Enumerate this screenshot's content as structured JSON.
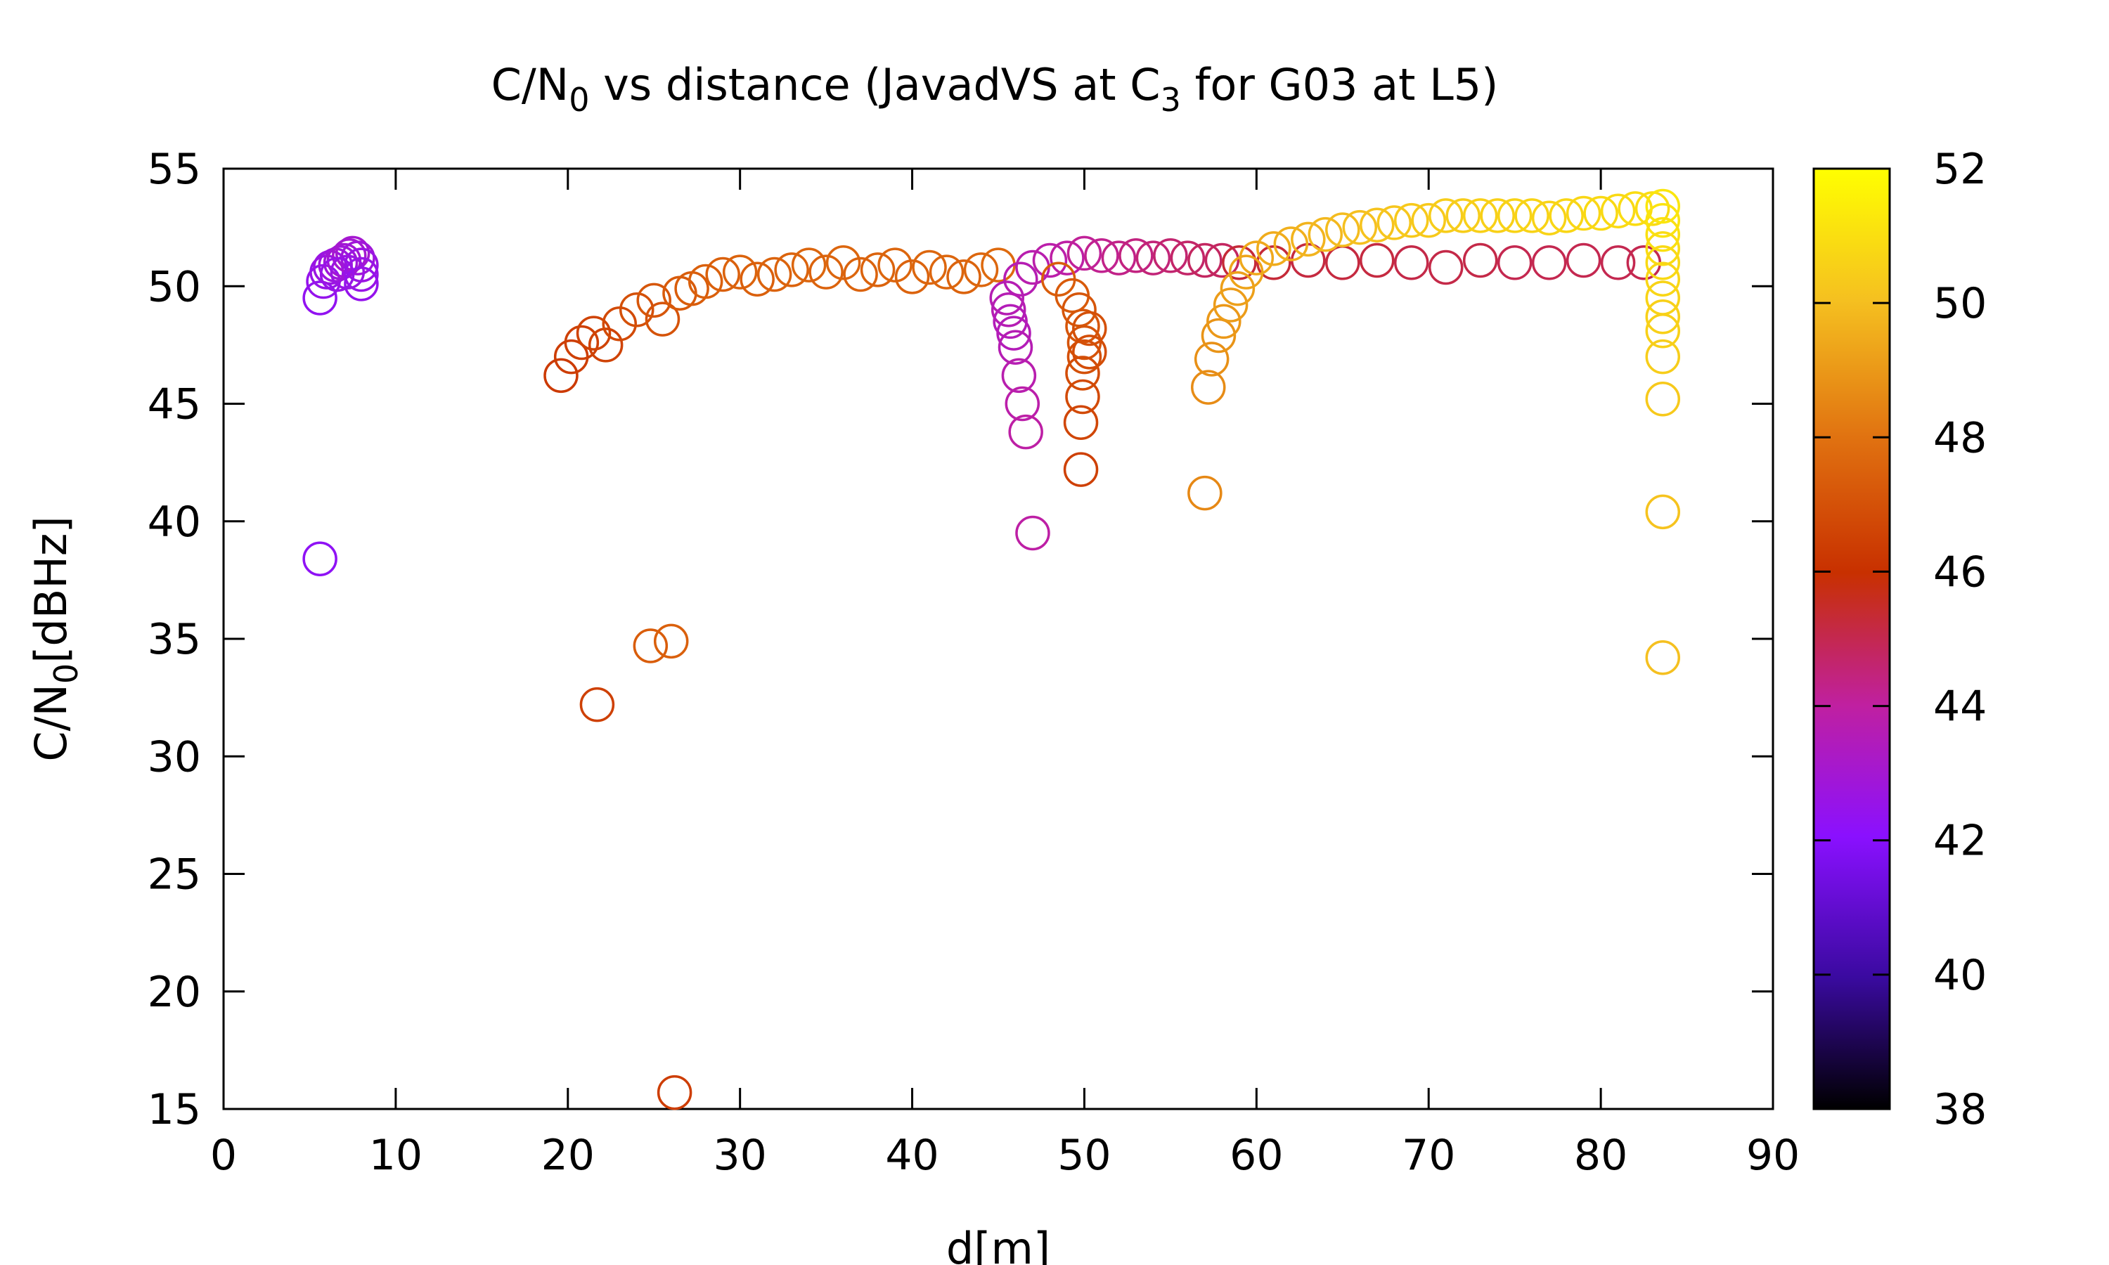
{
  "chart_data": {
    "type": "scatter",
    "title": {
      "pre": "C/N",
      "sub1": "0",
      "mid": " vs distance (JavadVS at C",
      "sub2": "3",
      "post": " for G03 at L5)"
    },
    "xlabel": "d[m]",
    "ylabel": {
      "pre": "C/N",
      "sub": "0",
      "post": "[dBHz]"
    },
    "xlim": [
      0,
      90
    ],
    "ylim": [
      15,
      55
    ],
    "xticks": [
      "0",
      "10",
      "20",
      "30",
      "40",
      "50",
      "60",
      "70",
      "80",
      "90"
    ],
    "yticks": [
      "15",
      "20",
      "25",
      "30",
      "35",
      "40",
      "45",
      "50",
      "55"
    ],
    "colorbar": {
      "range": [
        38,
        52
      ],
      "ticks": [
        "38",
        "40",
        "42",
        "44",
        "46",
        "48",
        "50",
        "52"
      ],
      "palette": "black-purple-red-orange-yellow",
      "stops": [
        "#000000",
        "#3a0aa0",
        "#8a10ff",
        "#c020a0",
        "#c83000",
        "#e07010",
        "#f5c020",
        "#ffff00"
      ]
    },
    "marker": "open-circle",
    "grid": false,
    "series": [
      {
        "points": [
          [
            5.6,
            38.4,
            42.2
          ],
          [
            5.6,
            49.5,
            42.3
          ],
          [
            5.8,
            50.2,
            42.4
          ],
          [
            6.0,
            50.6,
            42.5
          ],
          [
            6.2,
            50.8,
            42.6
          ],
          [
            6.5,
            50.9,
            42.7
          ],
          [
            6.8,
            51.0,
            42.8
          ],
          [
            7.0,
            51.1,
            42.9
          ],
          [
            7.3,
            51.3,
            43.0
          ],
          [
            7.5,
            51.4,
            43.0
          ],
          [
            7.8,
            51.2,
            42.8
          ],
          [
            8.0,
            50.9,
            42.6
          ],
          [
            8.0,
            50.5,
            42.5
          ],
          [
            8.0,
            50.1,
            42.4
          ],
          [
            7.2,
            50.6,
            42.6
          ],
          [
            6.6,
            50.5,
            42.5
          ]
        ]
      },
      {
        "points": [
          [
            19.6,
            46.2,
            46.3
          ],
          [
            20.2,
            47.0,
            46.4
          ],
          [
            20.8,
            47.6,
            46.5
          ],
          [
            21.5,
            48.0,
            46.6
          ],
          [
            21.7,
            32.2,
            46.5
          ],
          [
            22.2,
            47.5,
            46.6
          ],
          [
            23.0,
            48.4,
            46.8
          ],
          [
            24.0,
            49.0,
            47.0
          ],
          [
            24.8,
            34.7,
            47.4
          ],
          [
            25.0,
            49.4,
            47.2
          ],
          [
            25.5,
            48.6,
            47.1
          ],
          [
            26.0,
            34.9,
            47.5
          ],
          [
            26.2,
            15.7,
            46.4
          ],
          [
            26.5,
            49.7,
            47.3
          ],
          [
            27.2,
            49.9,
            47.4
          ],
          [
            28.0,
            50.2,
            47.5
          ],
          [
            29.0,
            50.5,
            47.5
          ],
          [
            30.0,
            50.6,
            47.6
          ],
          [
            31.0,
            50.3,
            47.5
          ],
          [
            32.0,
            50.5,
            47.6
          ],
          [
            33.0,
            50.7,
            47.6
          ],
          [
            34.0,
            50.9,
            47.7
          ],
          [
            35.0,
            50.6,
            47.6
          ],
          [
            36.0,
            51.0,
            47.7
          ],
          [
            37.0,
            50.5,
            47.6
          ],
          [
            38.0,
            50.7,
            47.6
          ],
          [
            39.0,
            50.9,
            47.7
          ],
          [
            40.0,
            50.4,
            47.6
          ],
          [
            41.0,
            50.8,
            47.7
          ],
          [
            42.0,
            50.6,
            47.7
          ],
          [
            43.0,
            50.4,
            47.6
          ],
          [
            44.0,
            50.7,
            47.7
          ],
          [
            45.0,
            50.9,
            47.8
          ]
        ]
      },
      {
        "points": [
          [
            45.5,
            49.5,
            43.6
          ],
          [
            45.6,
            49.0,
            43.6
          ],
          [
            45.7,
            48.5,
            43.5
          ],
          [
            45.9,
            48.0,
            43.5
          ],
          [
            46.0,
            47.4,
            43.6
          ],
          [
            46.2,
            46.2,
            43.7
          ],
          [
            46.4,
            45.0,
            43.8
          ],
          [
            46.6,
            43.8,
            43.9
          ],
          [
            47.0,
            39.5,
            43.9
          ],
          [
            46.3,
            50.3,
            43.6
          ],
          [
            47.0,
            50.8,
            43.7
          ],
          [
            48.0,
            51.1,
            43.8
          ],
          [
            49.0,
            51.2,
            43.9
          ],
          [
            50.0,
            51.4,
            44.1
          ],
          [
            51.0,
            51.3,
            44.2
          ],
          [
            52.0,
            51.2,
            44.3
          ],
          [
            53.0,
            51.3,
            44.4
          ],
          [
            54.0,
            51.2,
            44.5
          ],
          [
            55.0,
            51.3,
            44.6
          ],
          [
            56.0,
            51.2,
            44.7
          ],
          [
            57.0,
            51.1,
            44.8
          ],
          [
            58.0,
            51.1,
            44.8
          ]
        ]
      },
      {
        "points": [
          [
            48.5,
            50.3,
            47.4
          ],
          [
            49.3,
            49.6,
            47.3
          ],
          [
            49.7,
            49.0,
            47.2
          ],
          [
            49.9,
            48.3,
            47.2
          ],
          [
            50.0,
            47.6,
            47.1
          ],
          [
            50.0,
            47.0,
            47.0
          ],
          [
            49.9,
            46.3,
            46.9
          ],
          [
            49.9,
            45.3,
            46.8
          ],
          [
            49.8,
            44.2,
            46.7
          ],
          [
            49.8,
            42.2,
            46.5
          ],
          [
            50.3,
            48.2,
            47.0
          ],
          [
            50.3,
            47.2,
            46.9
          ]
        ]
      },
      {
        "points": [
          [
            59.0,
            51.0,
            45.3
          ],
          [
            61.0,
            51.0,
            45.3
          ],
          [
            63.0,
            51.1,
            45.2
          ],
          [
            65.0,
            51.0,
            45.2
          ],
          [
            67.0,
            51.1,
            45.2
          ],
          [
            69.0,
            51.0,
            45.1
          ],
          [
            71.0,
            50.8,
            45.1
          ],
          [
            73.0,
            51.1,
            45.1
          ],
          [
            75.0,
            51.0,
            45.0
          ],
          [
            77.0,
            51.0,
            45.0
          ],
          [
            79.0,
            51.1,
            45.0
          ],
          [
            81.0,
            51.0,
            45.0
          ],
          [
            82.5,
            51.0,
            45.0
          ]
        ]
      },
      {
        "points": [
          [
            57.0,
            41.2,
            48.6
          ],
          [
            57.2,
            45.7,
            48.7
          ],
          [
            57.4,
            46.9,
            48.8
          ],
          [
            57.8,
            47.9,
            48.9
          ],
          [
            58.1,
            48.5,
            49.0
          ],
          [
            58.5,
            49.2,
            49.1
          ],
          [
            58.9,
            49.9,
            49.2
          ],
          [
            59.4,
            50.6,
            49.3
          ],
          [
            60.0,
            51.2,
            49.4
          ],
          [
            61.0,
            51.6,
            49.5
          ],
          [
            62.0,
            51.8,
            49.6
          ],
          [
            63.0,
            52.0,
            49.7
          ],
          [
            64.0,
            52.2,
            49.8
          ],
          [
            65.0,
            52.4,
            49.9
          ],
          [
            66.0,
            52.5,
            50.0
          ],
          [
            67.0,
            52.6,
            50.1
          ],
          [
            68.0,
            52.7,
            50.2
          ],
          [
            69.0,
            52.8,
            50.3
          ],
          [
            70.0,
            52.8,
            50.3
          ],
          [
            71.0,
            53.0,
            50.4
          ],
          [
            72.0,
            53.0,
            50.4
          ],
          [
            73.0,
            53.0,
            50.5
          ],
          [
            74.0,
            53.0,
            50.5
          ],
          [
            75.0,
            53.0,
            50.6
          ],
          [
            76.0,
            53.0,
            50.6
          ],
          [
            77.0,
            52.9,
            50.6
          ],
          [
            78.0,
            53.0,
            50.7
          ],
          [
            79.0,
            53.1,
            50.7
          ],
          [
            80.0,
            53.1,
            50.8
          ],
          [
            81.0,
            53.2,
            50.8
          ],
          [
            82.0,
            53.3,
            50.9
          ],
          [
            83.0,
            53.3,
            50.9
          ]
        ]
      },
      {
        "points": [
          [
            83.6,
            53.4,
            51.2
          ],
          [
            83.6,
            52.8,
            51.1
          ],
          [
            83.6,
            52.2,
            51.0
          ],
          [
            83.6,
            51.6,
            50.9
          ],
          [
            83.6,
            51.0,
            50.8
          ],
          [
            83.6,
            50.3,
            50.7
          ],
          [
            83.6,
            49.5,
            50.6
          ],
          [
            83.6,
            48.7,
            50.5
          ],
          [
            83.6,
            48.1,
            50.5
          ],
          [
            83.6,
            47.0,
            50.4
          ],
          [
            83.6,
            45.2,
            50.3
          ],
          [
            83.6,
            40.4,
            50.1
          ],
          [
            83.6,
            34.2,
            50.0
          ]
        ]
      }
    ]
  }
}
